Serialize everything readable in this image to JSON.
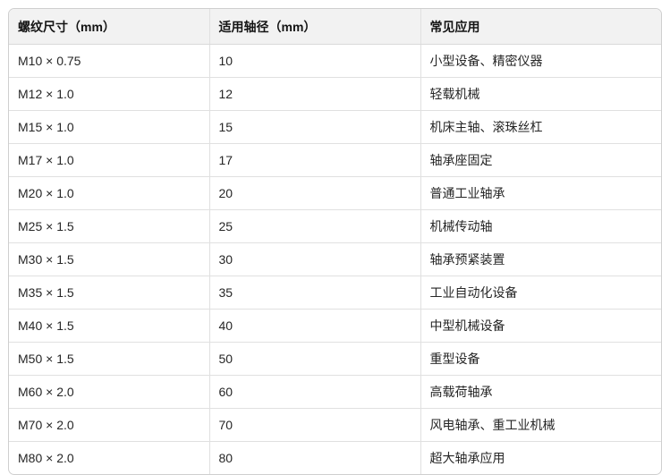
{
  "colors": {
    "header_bg": "#f2f2f2",
    "outer_border": "#cfcfcf",
    "inner_border": "#e0e0e0",
    "text": "#262626",
    "header_text": "#141414"
  },
  "table": {
    "columns": [
      "螺纹尺寸（mm）",
      "适用轴径（mm）",
      "常见应用"
    ],
    "rows": [
      [
        "M10 × 0.75",
        "10",
        "小型设备、精密仪器"
      ],
      [
        "M12 × 1.0",
        "12",
        "轻载机械"
      ],
      [
        "M15 × 1.0",
        "15",
        "机床主轴、滚珠丝杠"
      ],
      [
        "M17 × 1.0",
        "17",
        "轴承座固定"
      ],
      [
        "M20 × 1.0",
        "20",
        "普通工业轴承"
      ],
      [
        "M25 × 1.5",
        "25",
        "机械传动轴"
      ],
      [
        "M30 × 1.5",
        "30",
        "轴承预紧装置"
      ],
      [
        "M35 × 1.5",
        "35",
        "工业自动化设备"
      ],
      [
        "M40 × 1.5",
        "40",
        "中型机械设备"
      ],
      [
        "M50 × 1.5",
        "50",
        "重型设备"
      ],
      [
        "M60 × 2.0",
        "60",
        "高载荷轴承"
      ],
      [
        "M70 × 2.0",
        "70",
        "风电轴承、重工业机械"
      ],
      [
        "M80 × 2.0",
        "80",
        "超大轴承应用"
      ]
    ]
  }
}
